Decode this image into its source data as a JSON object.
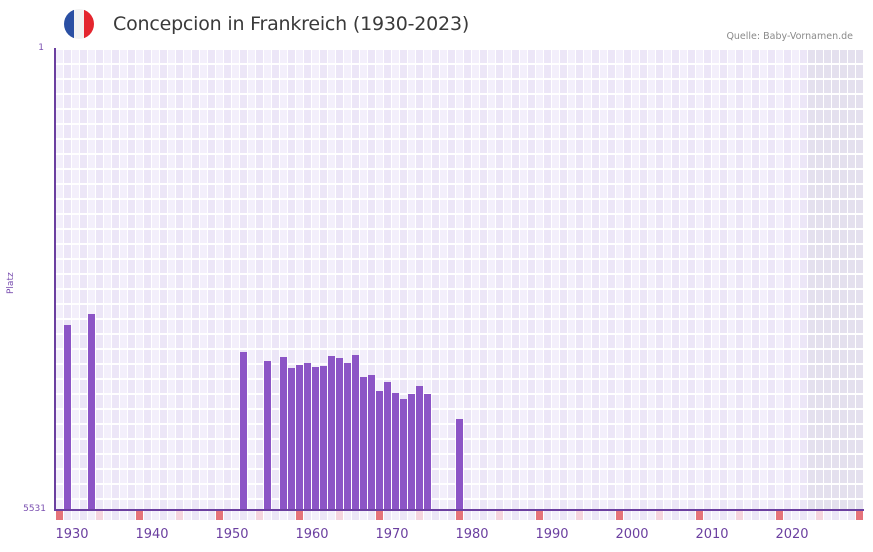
{
  "header": {
    "title": "Concepcion in Frankreich (1930-2023)",
    "source": "Quelle: Baby-Vornamen.de",
    "flag_colors": [
      "#2a4fa3",
      "#f2f2f2",
      "#e4262e"
    ]
  },
  "colors": {
    "bar": "#8c55c6",
    "axis": "#6b3fa0",
    "cell_light": "#f3effb",
    "cell_dark": "#ece6f7",
    "future_cell": "#e4e0ee",
    "decade_marker": "#e5737b",
    "half_decade_marker": "#f5d5df"
  },
  "chart_data": {
    "type": "bar",
    "title": "Concepcion in Frankreich (1930-2023)",
    "xlabel": "",
    "ylabel": "Platz",
    "y_inverted": true,
    "ylim": [
      5531,
      1
    ],
    "y_ticks": [
      "1",
      "5531"
    ],
    "x_range": [
      1930,
      2030
    ],
    "x_tick_labels": [
      "1930",
      "1940",
      "1950",
      "1960",
      "1970",
      "1980",
      "1990",
      "2000",
      "2010",
      "2020"
    ],
    "grid": true,
    "future_shaded_from": 2024,
    "categories": [
      1931,
      1934,
      1953,
      1956,
      1958,
      1959,
      1960,
      1961,
      1962,
      1963,
      1964,
      1965,
      1966,
      1967,
      1968,
      1969,
      1970,
      1971,
      1972,
      1973,
      1974,
      1975,
      1976,
      1980
    ],
    "values": [
      3307,
      3175,
      3632,
      3740,
      3692,
      3824,
      3788,
      3764,
      3812,
      3800,
      3680,
      3704,
      3764,
      3668,
      3932,
      3908,
      4100,
      3992,
      4124,
      4197,
      4136,
      4040,
      4136,
      4437
    ]
  }
}
